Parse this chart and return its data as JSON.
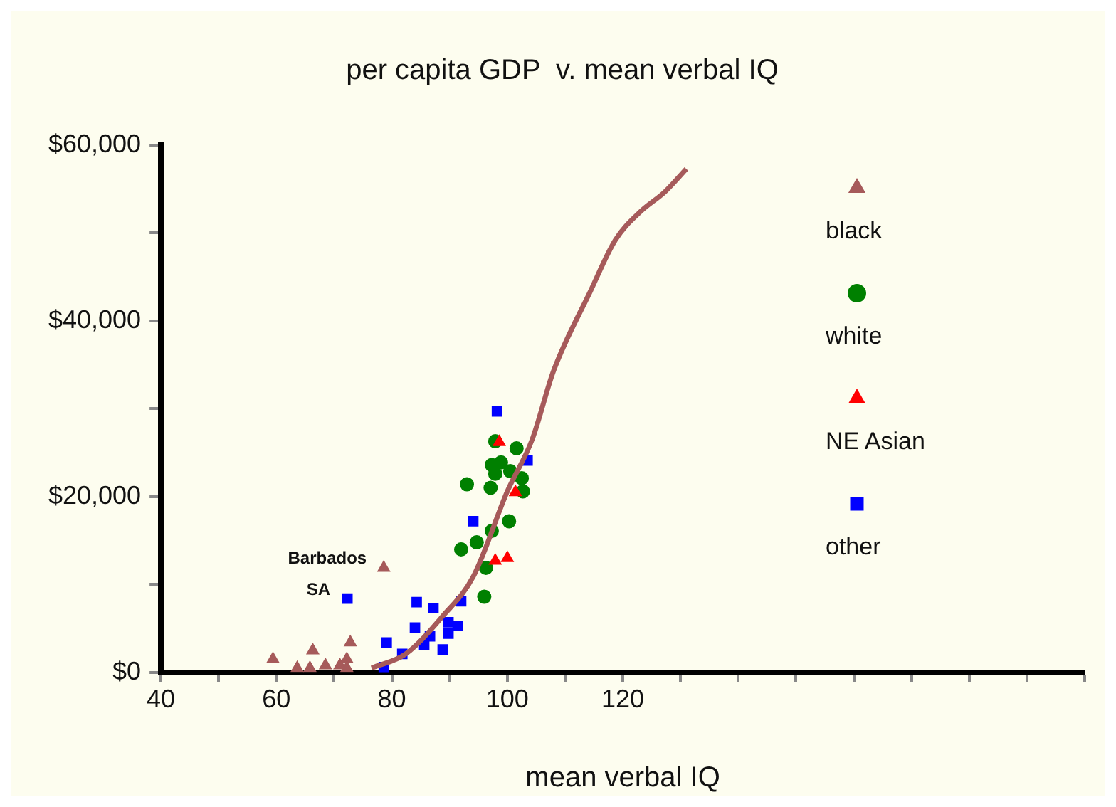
{
  "chart_data": {
    "type": "scatter",
    "title": "per capita GDP  v. mean verbal IQ",
    "xlabel": "mean verbal IQ",
    "xlim": [
      40,
      200
    ],
    "xticks": [
      40,
      {
        "value": 50,
        "label": null
      },
      60,
      {
        "value": 70,
        "label": null
      },
      80,
      {
        "value": 90,
        "label": null
      },
      100,
      {
        "value": 110,
        "label": null
      },
      120,
      {
        "value": 130,
        "label": null
      },
      {
        "value": 140,
        "label": null
      },
      {
        "value": 150,
        "label": null
      },
      {
        "value": 160,
        "label": null
      },
      {
        "value": 170,
        "label": null
      },
      {
        "value": 180,
        "label": null
      },
      {
        "value": 190,
        "label": null
      },
      {
        "value": 200,
        "label": null
      }
    ],
    "ylim": [
      0,
      60000
    ],
    "yticks": [
      {
        "value": 0,
        "label": "$0"
      },
      {
        "value": 10000,
        "label": null
      },
      {
        "value": 20000,
        "label": "$20,000"
      },
      {
        "value": 30000,
        "label": null
      },
      {
        "value": 40000,
        "label": "$40,000"
      },
      {
        "value": 50000,
        "label": null
      },
      {
        "value": 60000,
        "label": "$60,000"
      }
    ],
    "grid": false,
    "legend": "top right",
    "annotations": [
      {
        "text": "Barbados",
        "x": 78.6,
        "y": 11900
      },
      {
        "text": "SA",
        "x": 72.3,
        "y": 8400
      }
    ],
    "series": [
      {
        "name": "black",
        "color": "#a65a5a",
        "marker": "triangle",
        "x": [
          59.4,
          63.6,
          66.3,
          65.8,
          68.5,
          71,
          72.2,
          72.8,
          72.2,
          78.6
        ],
        "values": [
          1500,
          500,
          2500,
          500,
          800,
          800,
          1500,
          3400,
          500,
          11900
        ]
      },
      {
        "name": "white",
        "color": "#008000",
        "marker": "circle",
        "x": [
          97.9,
          101.6,
          97.3,
          98.9,
          97.9,
          100.5,
          102.5,
          93,
          97.1,
          102.7,
          100.3,
          97.3,
          94.7,
          92,
          96.3,
          96
        ],
        "values": [
          26300,
          25500,
          23600,
          23900,
          22600,
          22900,
          22100,
          21400,
          21000,
          20600,
          17200,
          16100,
          14800,
          14000,
          11900,
          8600
        ]
      },
      {
        "name": "NE Asian",
        "color": "#ff0000",
        "marker": "triangle",
        "x": [
          98.6,
          101.4,
          97.9,
          100
        ],
        "values": [
          26200,
          20500,
          12700,
          13000
        ]
      },
      {
        "name": "other",
        "color": "#0000ff",
        "marker": "square",
        "x": [
          98.2,
          103.5,
          94.1,
          72.3,
          84.3,
          92,
          87.2,
          89.8,
          91.4,
          84,
          79.1,
          86.6,
          89.8,
          88.8,
          81.8,
          78.6,
          85.6
        ],
        "values": [
          29700,
          24100,
          17200,
          8400,
          8000,
          8100,
          7300,
          5700,
          5300,
          5100,
          3400,
          4100,
          4400,
          2600,
          2100,
          600,
          3100
        ]
      },
      {
        "type": "line",
        "color": "#a65a5a",
        "marker": "none",
        "x": [
          76.5,
          82.4,
          88.8,
          94.1,
          100,
          104.3,
          108,
          114.4,
          118.7,
          123,
          127.3,
          131
        ],
        "values": [
          500,
          2100,
          6400,
          10900,
          20600,
          26500,
          34300,
          43400,
          49200,
          52400,
          54700,
          57300
        ]
      }
    ]
  }
}
